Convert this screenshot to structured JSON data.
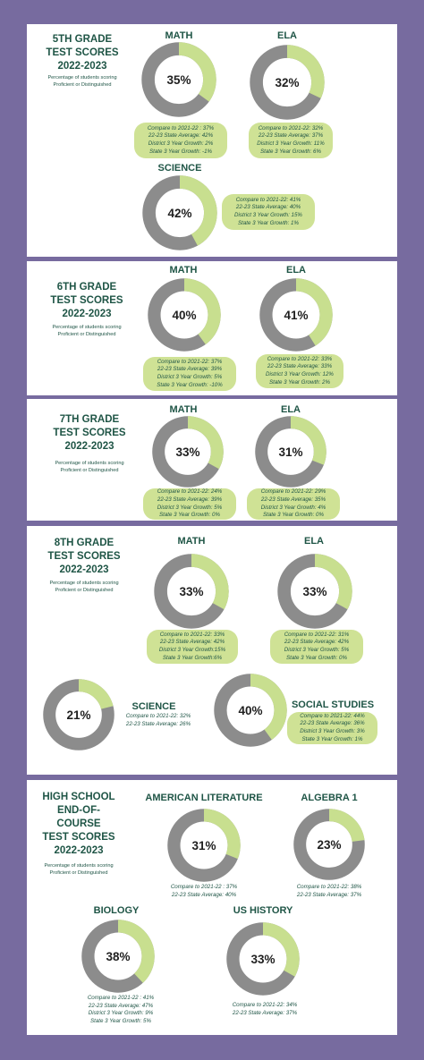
{
  "colors": {
    "accent": "#c8df8f",
    "track": "#8c8c8c",
    "text": "#1f5546",
    "background": "#776b9f"
  },
  "subtitle": "Percentage of students scoring Proficient or Distinguished",
  "grades": [
    {
      "title": [
        "5TH GRADE",
        "TEST SCORES",
        "2022-2023"
      ],
      "subjects": [
        {
          "name": "MATH",
          "value": 35,
          "label": "35%",
          "notes": [
            "Compare to 2021-22 : 37%",
            "22-23 State Average: 42%",
            "District 3 Year Growth: 2%",
            "State 3 Year Growth: -1%"
          ]
        },
        {
          "name": "ELA",
          "value": 32,
          "label": "32%",
          "notes": [
            "Compare to 2021-22: 32%",
            "22-23 State Average: 37%",
            "District 3 Year Growth: 11%",
            "State 3 Year Growth: 6%"
          ]
        },
        {
          "name": "SCIENCE",
          "value": 42,
          "label": "42%",
          "notes": [
            "Compare to 2021-22: 41%",
            "22-23 State Average: 40%",
            "District 3 Year Growth: 15%",
            "State 3 Year Growth: 1%"
          ]
        }
      ]
    },
    {
      "title": [
        "6TH GRADE",
        "TEST SCORES",
        "2022-2023"
      ],
      "subjects": [
        {
          "name": "MATH",
          "value": 40,
          "label": "40%",
          "notes": [
            "Compare to 2021-22: 37%",
            "22-23 State Average: 39%",
            "District 3 Year Growth: 5%",
            "State 3 Year Growth: -10%"
          ]
        },
        {
          "name": "ELA",
          "value": 41,
          "label": "41%",
          "notes": [
            "Compare to 2021-22: 33%",
            "22-23 State Average: 33%",
            "District 3 Year Growth: 12%",
            "State 3 Year Growth: 2%"
          ]
        }
      ]
    },
    {
      "title": [
        "7TH GRADE",
        "TEST SCORES",
        "2022-2023"
      ],
      "subjects": [
        {
          "name": "MATH",
          "value": 33,
          "label": "33%",
          "notes": [
            "Compare to 2021-22: 24%",
            "22-23 State Average: 39%",
            "District 3 Year Growth: 5%",
            "State 3 Year Growth: 0%"
          ]
        },
        {
          "name": "ELA",
          "value": 31,
          "label": "31%",
          "notes": [
            "Compare to 2021-22: 29%",
            "22-23 State Average: 35%",
            "District 3 Year Growth: 4%",
            "State 3 Year Growth: 0%"
          ]
        }
      ]
    },
    {
      "title": [
        "8TH GRADE",
        "TEST SCORES",
        "2022-2023"
      ],
      "subjects": [
        {
          "name": "MATH",
          "value": 33,
          "label": "33%",
          "notes": [
            "Compare to 2021-22: 33%",
            "22-23 State Average: 42%",
            "District 3 Year Growth:15%",
            "State 3 Year Growth:6%"
          ]
        },
        {
          "name": "ELA",
          "value": 33,
          "label": "33%",
          "notes": [
            "Compare to 2021-22: 31%",
            "22-23 State Average: 42%",
            "District 3 Year Growth: 5%",
            "State 3 Year Growth: 0%"
          ]
        },
        {
          "name": "SCIENCE",
          "value": 21,
          "label": "21%",
          "notes": [
            "Compare to 2021-22: 32%",
            "22-23 State Average: 26%"
          ]
        },
        {
          "name": "SOCIAL STUDIES",
          "value": 40,
          "label": "40%",
          "notes": [
            "Compare to 2021-22: 44%",
            "22-23 State Average: 36%",
            "District 3 Year Growth: 3%",
            "State 3 Year Growth: 1%"
          ]
        }
      ]
    },
    {
      "title": [
        "HIGH SCHOOL",
        "END-OF-",
        "COURSE",
        "TEST SCORES",
        "2022-2023"
      ],
      "subjects": [
        {
          "name": "AMERICAN LITERATURE",
          "value": 31,
          "label": "31%",
          "notes": [
            "Compare to 2021-22 : 37%",
            "22-23 State Average: 40%"
          ]
        },
        {
          "name": "ALGEBRA 1",
          "value": 23,
          "label": "23%",
          "notes": [
            "Compare to 2021-22: 38%",
            "22-23 State Average: 37%"
          ]
        },
        {
          "name": "BIOLOGY",
          "value": 38,
          "label": "38%",
          "notes": [
            "Compare to 2021-22 : 41%",
            "22-23 State Average: 47%",
            "District 3 Year Growth: 9%",
            "State 3 Year Growth: 5%"
          ]
        },
        {
          "name": "US HISTORY",
          "value": 33,
          "label": "33%",
          "notes": [
            "Compare to 2021-22: 34%",
            "22-23 State Average: 37%"
          ]
        }
      ]
    }
  ],
  "chart_data": {
    "type": "pie",
    "unit": "%",
    "series": [
      {
        "name": "5TH GRADE",
        "categories": [
          "MATH",
          "ELA",
          "SCIENCE"
        ],
        "values": [
          35,
          32,
          42
        ]
      },
      {
        "name": "6TH GRADE",
        "categories": [
          "MATH",
          "ELA"
        ],
        "values": [
          40,
          41
        ]
      },
      {
        "name": "7TH GRADE",
        "categories": [
          "MATH",
          "ELA"
        ],
        "values": [
          33,
          31
        ]
      },
      {
        "name": "8TH GRADE",
        "categories": [
          "MATH",
          "ELA",
          "SCIENCE",
          "SOCIAL STUDIES"
        ],
        "values": [
          33,
          33,
          21,
          40
        ]
      },
      {
        "name": "HIGH SCHOOL END-OF-COURSE",
        "categories": [
          "AMERICAN LITERATURE",
          "ALGEBRA 1",
          "BIOLOGY",
          "US HISTORY"
        ],
        "values": [
          31,
          23,
          38,
          33
        ]
      }
    ]
  }
}
